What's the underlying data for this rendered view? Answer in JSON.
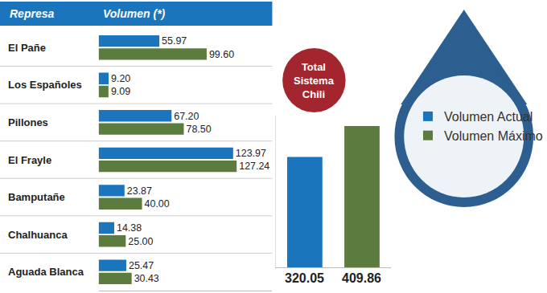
{
  "chart_data": [
    {
      "type": "bar",
      "orientation": "horizontal",
      "ylabel": "Represa",
      "xlabel": "Volumen (*)",
      "categories": [
        "El Pañe",
        "Los Españoles",
        "Pillones",
        "El Frayle",
        "Bamputañe",
        "Chalhuanca",
        "Aguada Blanca"
      ],
      "series": [
        {
          "name": "Volumen Actual",
          "color": "#1b75bc",
          "values": [
            55.97,
            9.2,
            67.2,
            123.97,
            23.87,
            14.38,
            25.47
          ],
          "value_labels": [
            "55.97",
            "9.20",
            "67.20",
            "123.97",
            "23.87",
            "14.38",
            "25.47"
          ]
        },
        {
          "name": "Volumen Máximo",
          "color": "#5c7b3e",
          "values": [
            99.6,
            9.09,
            78.5,
            127.24,
            40.0,
            25.0,
            30.43
          ],
          "value_labels": [
            "99.60",
            "9.09",
            "78.50",
            "127.24",
            "40.00",
            "25.00",
            "30.43"
          ]
        }
      ],
      "xlim": [
        0,
        160
      ],
      "tick_labels": false,
      "data_labels": true,
      "legend": "right"
    },
    {
      "type": "bar",
      "title": "Total Sistema Chili",
      "categories": [
        null,
        null
      ],
      "values": [
        320.05,
        409.86
      ],
      "colors": [
        "#1b75bc",
        "#5c7b3e"
      ],
      "ylim": [
        0,
        440
      ],
      "tick_labels": false,
      "data_labels": true
    }
  ]
}
